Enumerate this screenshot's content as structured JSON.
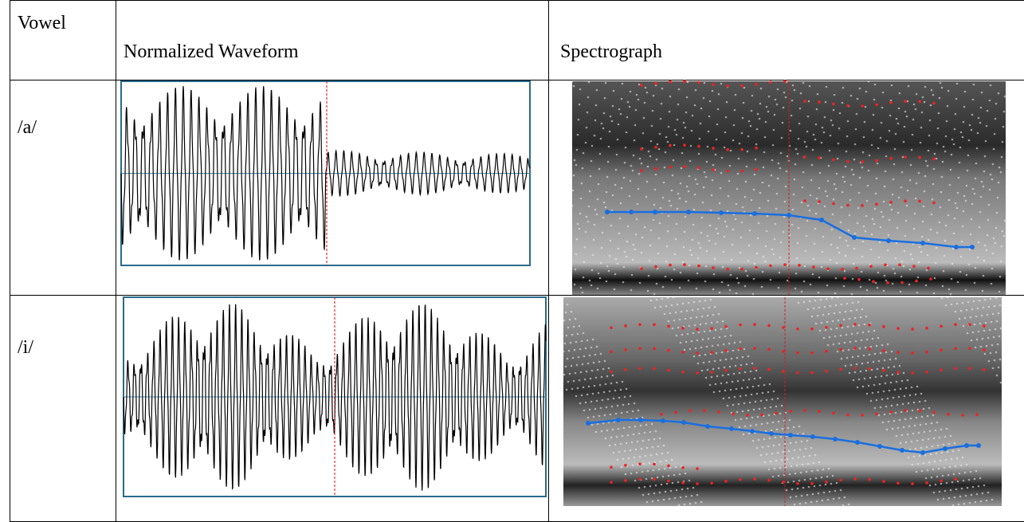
{
  "table": {
    "header": [
      "Vowel",
      "Normalized Waveform",
      "Spectrograph"
    ],
    "rows": [
      [
        "/a/"
      ],
      [
        "/i/"
      ]
    ]
  }
}
